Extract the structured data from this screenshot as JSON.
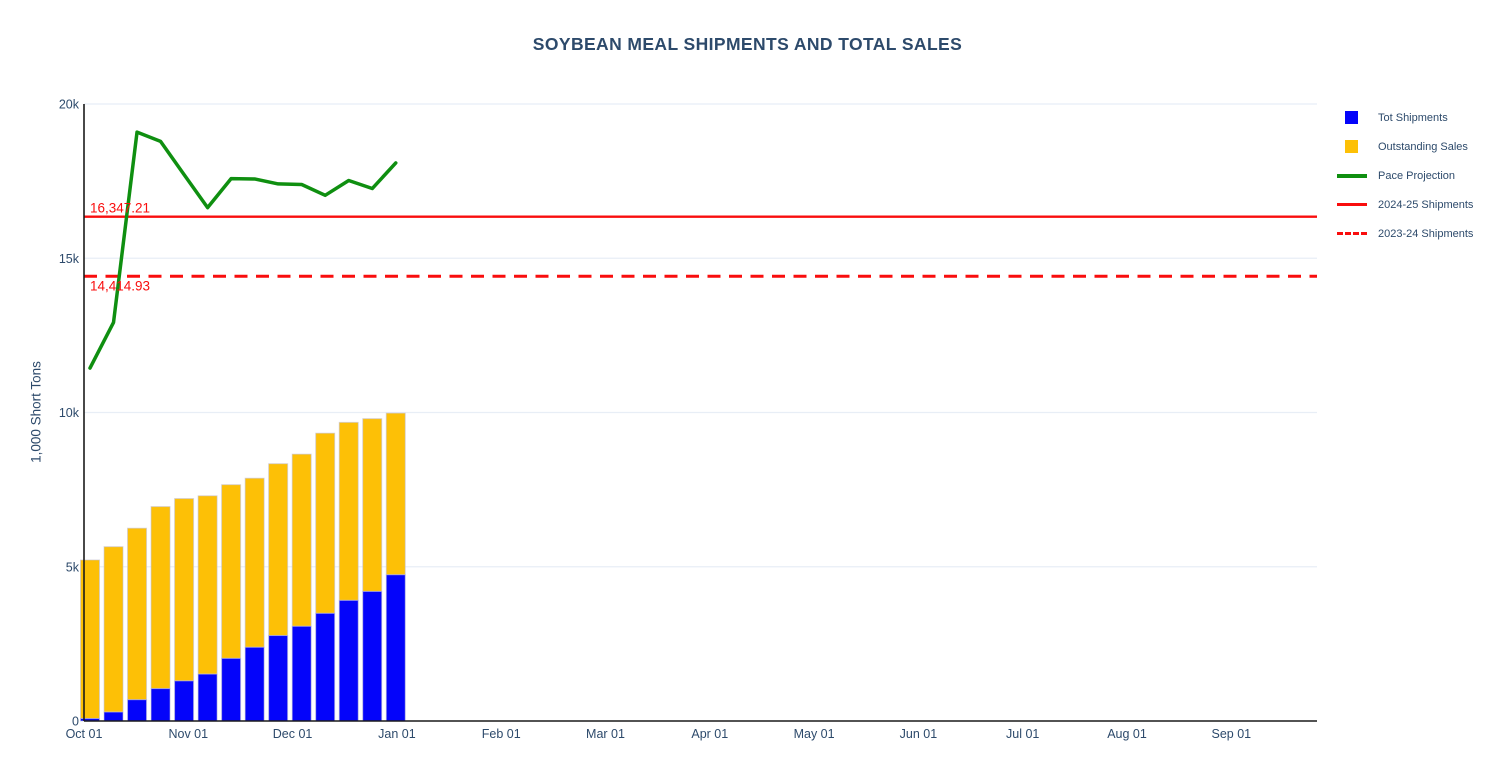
{
  "title": "SOYBEAN MEAL SHIPMENTS AND TOTAL SALES",
  "y_axis": {
    "label": "1,000 Short Tons",
    "tick_labels": [
      "0",
      "5k",
      "10k",
      "15k",
      "20k"
    ],
    "tick_values": [
      0,
      5000,
      10000,
      15000,
      20000
    ]
  },
  "x_axis": {
    "tick_labels": [
      "Oct 01",
      "Nov 01",
      "Dec 01",
      "Jan 01",
      "Feb 01",
      "Mar 01",
      "Apr 01",
      "May 01",
      "Jun 01",
      "Jul 01",
      "Aug 01",
      "Sep 01"
    ]
  },
  "legend": {
    "items": [
      {
        "label": "Tot Shipments",
        "marker": "square",
        "color": "#0404fa"
      },
      {
        "label": "Outstanding Sales",
        "marker": "square",
        "color": "#fdc006"
      },
      {
        "label": "Pace Projection",
        "marker": "line",
        "color": "#0f8f10"
      },
      {
        "label": "2024-25 Shipments",
        "marker": "thinline",
        "color": "#f90d0d"
      },
      {
        "label": "2023-24 Shipments",
        "marker": "dashed",
        "color": "#f90d0d"
      }
    ]
  },
  "colors": {
    "title_text": "#2d4a6b",
    "axis_text": "#2d4a6b",
    "axis_line": "#1a1a1a",
    "gridline": "#e8eef6",
    "bar_blue": "#0404fa",
    "bar_yellow": "#fdc006",
    "line_green": "#0f8f10",
    "line_red": "#f90d0d",
    "background": "#ffffff"
  },
  "chart_data": {
    "type": "bar",
    "subtype": "stacked-bars-with-line",
    "title": "SOYBEAN MEAL SHIPMENTS AND TOTAL SALES",
    "xlabel": "",
    "ylabel": "1,000 Short Tons",
    "ylim": [
      0,
      20000
    ],
    "grid": "horizontal",
    "legend_position": "right",
    "x_tick_labels": [
      "Oct 01",
      "Nov 01",
      "Dec 01",
      "Jan 01",
      "Feb 01",
      "Mar 01",
      "Apr 01",
      "May 01",
      "Jun 01",
      "Jul 01",
      "Aug 01",
      "Sep 01"
    ],
    "categories": [
      "Oct 03",
      "Oct 10",
      "Oct 17",
      "Oct 24",
      "Oct 31",
      "Nov 07",
      "Nov 14",
      "Nov 21",
      "Nov 28",
      "Dec 05",
      "Dec 12",
      "Dec 19",
      "Dec 26",
      "Jan 02"
    ],
    "stacked": true,
    "series": [
      {
        "name": "Tot Shipments",
        "type": "bar",
        "color": "#0404fa",
        "values": [
          80,
          290,
          690,
          1050,
          1300,
          1520,
          2030,
          2390,
          2770,
          3070,
          3490,
          3910,
          4200,
          4740
        ]
      },
      {
        "name": "Outstanding Sales",
        "type": "bar",
        "color": "#fdc006",
        "values": [
          5140,
          5360,
          5560,
          5900,
          5910,
          5780,
          5630,
          5480,
          5570,
          5580,
          5840,
          5770,
          5600,
          5240
        ]
      },
      {
        "name": "Pace Projection",
        "type": "line",
        "color": "#0f8f10",
        "values": [
          11440,
          12920,
          19090,
          18790,
          17710,
          16640,
          17580,
          17570,
          17410,
          17390,
          17040,
          17520,
          17260,
          18090
        ]
      },
      {
        "name": "2024-25 Shipments",
        "type": "hline",
        "style": "solid",
        "color": "#f90d0d",
        "value": 16347.21,
        "label": "16,347.21"
      },
      {
        "name": "2023-24 Shipments",
        "type": "hline",
        "style": "dashed",
        "color": "#f90d0d",
        "value": 14414.93,
        "label": "14,414.93"
      }
    ]
  }
}
